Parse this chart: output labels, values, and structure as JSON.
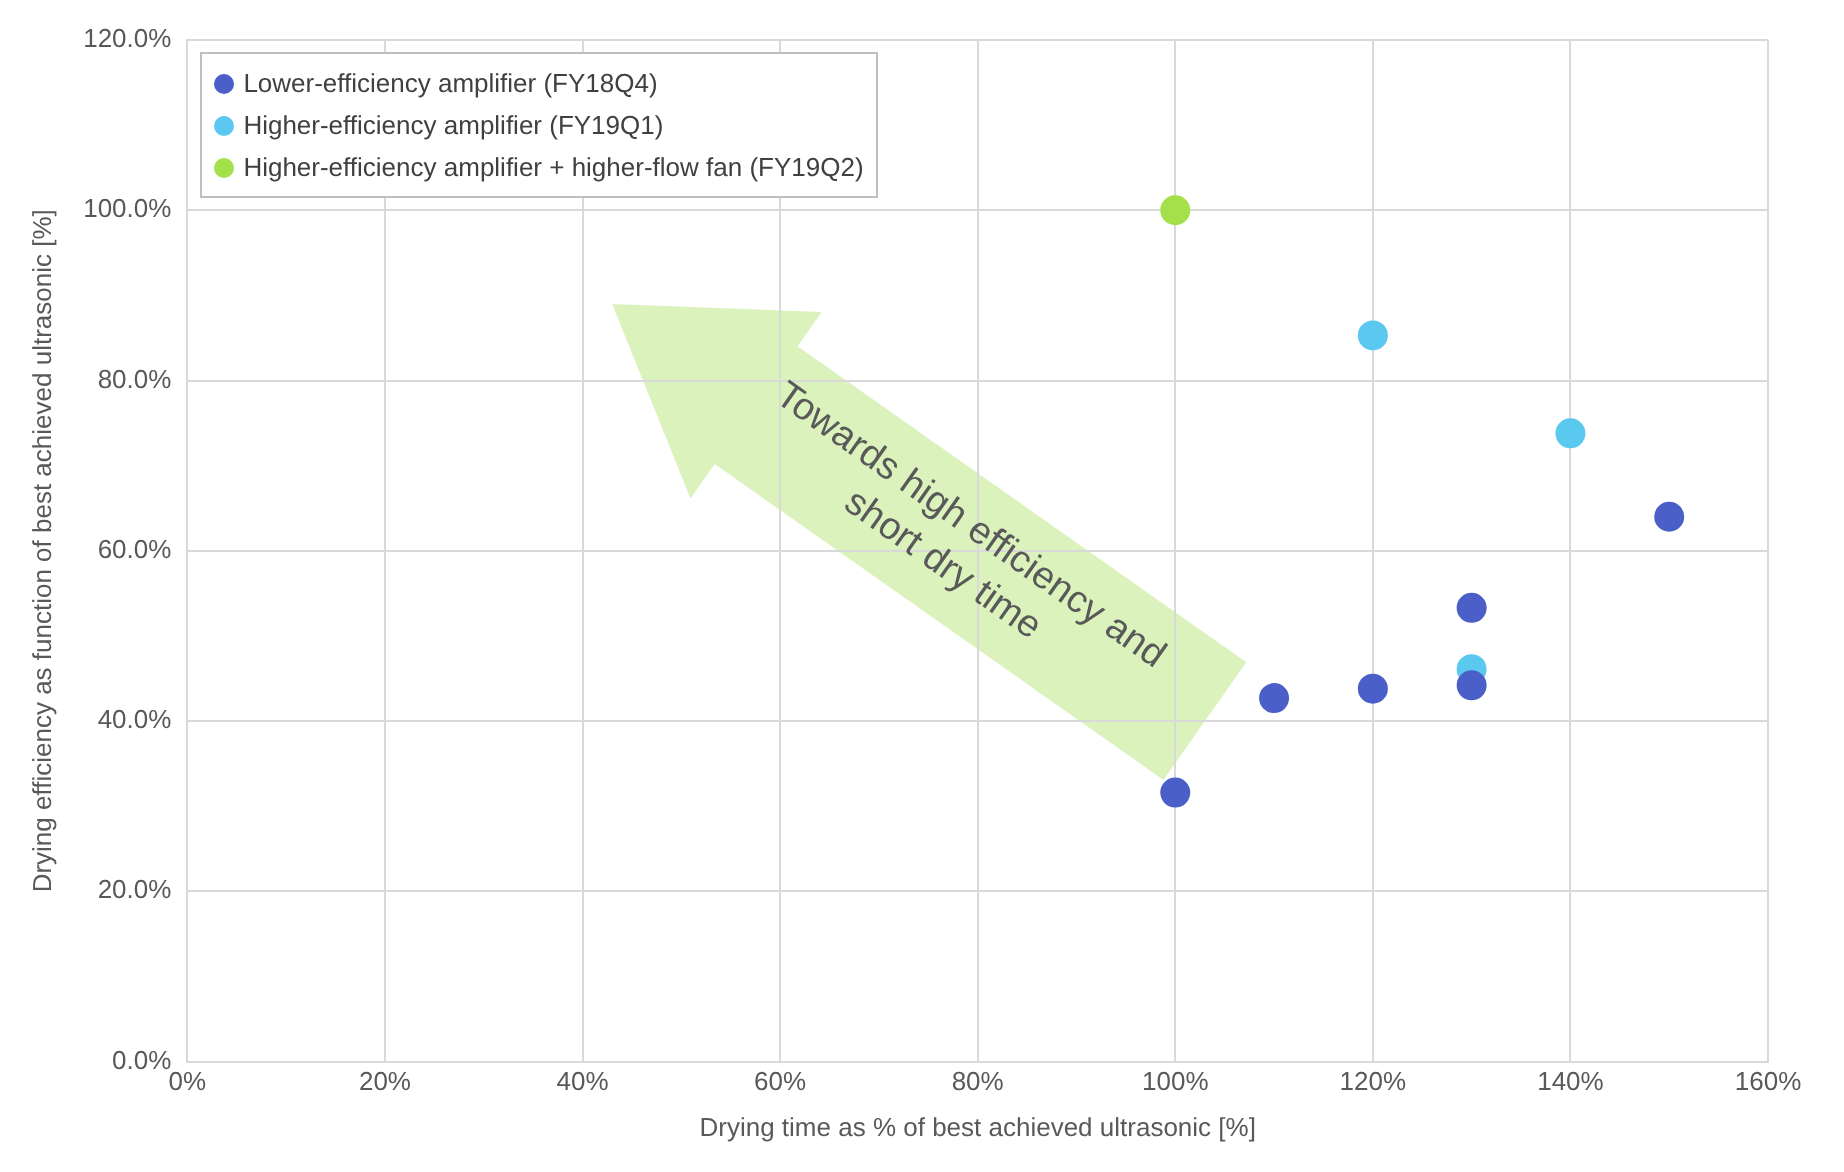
{
  "chart_data": {
    "type": "scatter",
    "xlabel": "Drying time as % of best achieved ultrasonic [%]",
    "ylabel": "Drying efficiency as function of best achieved ultrasonic [%]",
    "xlim": [
      0,
      160
    ],
    "xticks": [
      {
        "value": 0,
        "label": "0%"
      },
      {
        "value": 20,
        "label": "20%"
      },
      {
        "value": 40,
        "label": "40%"
      },
      {
        "value": 60,
        "label": "60%"
      },
      {
        "value": 80,
        "label": "80%"
      },
      {
        "value": 100,
        "label": "100%"
      },
      {
        "value": 120,
        "label": "120%"
      },
      {
        "value": 140,
        "label": "140%"
      },
      {
        "value": 160,
        "label": "160%"
      }
    ],
    "ylim": [
      0,
      120
    ],
    "yticks": [
      {
        "value": 0,
        "label": "0.0%"
      },
      {
        "value": 20,
        "label": "20.0%"
      },
      {
        "value": 40,
        "label": "40.0%"
      },
      {
        "value": 60,
        "label": "60.0%"
      },
      {
        "value": 80,
        "label": "80.0%"
      },
      {
        "value": 100,
        "label": "100.0%"
      },
      {
        "value": 120,
        "label": "120.0%"
      }
    ],
    "grid": true,
    "legend": "top left",
    "marker": "circle",
    "series": [
      {
        "name": "Lower-efficiency amplifier (FY18Q4)",
        "color": "#4a5fc8",
        "x": [
          100,
          110,
          120,
          130,
          130,
          150
        ],
        "values": [
          31.6,
          42.7,
          43.8,
          44.2,
          53.3,
          64.0
        ]
      },
      {
        "name": "Higher-efficiency amplifier (FY19Q1)",
        "color": "#5bc8f0",
        "x": [
          120,
          130,
          140
        ],
        "values": [
          85.3,
          46.1,
          73.8
        ]
      },
      {
        "name": "Higher-efficiency amplifier + higher-flow fan (FY19Q2)",
        "color": "#a4e04a",
        "x": [
          100
        ],
        "values": [
          100
        ]
      }
    ],
    "annotations": [
      "Towards high efficiency and short dry time"
    ]
  }
}
